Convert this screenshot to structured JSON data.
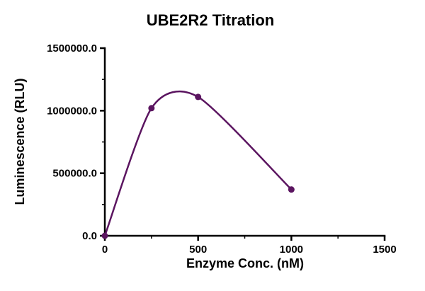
{
  "chart_data": {
    "type": "line",
    "title": "UBE2R2 Titration",
    "xlabel": "Enzyme Conc. (nM)",
    "ylabel": "Luminescence (RLU)",
    "x": [
      0,
      250,
      500,
      1000
    ],
    "y": [
      0,
      1020000,
      1110000,
      370000
    ],
    "xlim": [
      0,
      1500
    ],
    "ylim": [
      0,
      1500000
    ],
    "x_tick_values": [
      0,
      500,
      1000,
      1500
    ],
    "x_tick_labels": [
      "0",
      "500",
      "1000",
      "1500"
    ],
    "y_tick_values": [
      0,
      500000,
      1000000,
      1500000
    ],
    "y_tick_labels": [
      "0.0",
      "500000.0",
      "1000000.0",
      "1500000.0"
    ],
    "x_minor_tick_values": [
      250,
      750,
      1250
    ],
    "y_minor_tick_values": [
      250000,
      750000,
      1250000
    ],
    "series_color": "#5b1560",
    "axis_color": "#000000",
    "marker": "circle",
    "smooth_curve": true,
    "grid": false,
    "legend": "none"
  }
}
